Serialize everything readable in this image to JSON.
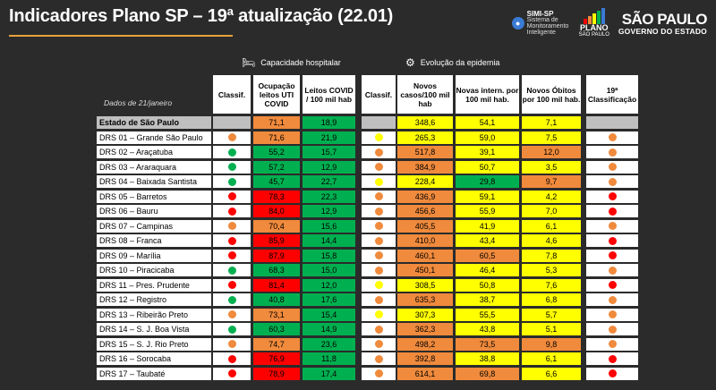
{
  "title": "Indicadores Plano SP – 19ª atualização (22.01)",
  "logos": {
    "simi_title": "SIMI-SP",
    "simi_sub": "Sistema de Monitoramento Inteligente",
    "plano_title": "PLANO",
    "plano_sub": "SÃO PAULO",
    "sp_title": "SÃO PAULO",
    "sp_sub": "GOVERNO DO ESTADO"
  },
  "sections": {
    "capacidade": "Capacidade hospitalar",
    "evolucao": "Evolução da epidemia"
  },
  "date_label": "Dados de 21/janeiro",
  "headers": {
    "classif1": "Classif.",
    "ocupacao": "Ocupação leitos UTI COVID",
    "leitos": "Leitos COVID / 100 mil hab",
    "classif2": "Classif.",
    "casos": "Novos casos/100 mil hab",
    "intern": "Novas intern. por 100 mil hab.",
    "obitos": "Novos Óbitos por 100 mil hab.",
    "classif19": "19ª Classificação"
  },
  "colors": {
    "red": "#ff0000",
    "orange": "#f08a3c",
    "yellow": "#ffff00",
    "green": "#00b050",
    "gray": "#bfbfbf"
  },
  "rows": [
    {
      "name": "Estado de São Paulo",
      "c1": "",
      "ocup": "71,1",
      "ocup_c": "orange",
      "leit": "18,9",
      "leit_c": "green",
      "c2": "",
      "casos": "348,6",
      "casos_c": "yellow",
      "int": "54,1",
      "int_c": "yellow",
      "obi": "7,1",
      "obi_c": "yellow",
      "c19": "",
      "state": true
    },
    {
      "name": "DRS 01 – Grande São Paulo",
      "c1": "orange",
      "ocup": "71,6",
      "ocup_c": "orange",
      "leit": "21,9",
      "leit_c": "green",
      "c2": "yellow",
      "casos": "265,3",
      "casos_c": "yellow",
      "int": "59,0",
      "int_c": "yellow",
      "obi": "7,5",
      "obi_c": "yellow",
      "c19": "orange"
    },
    {
      "name": "DRS 02 – Araçatuba",
      "c1": "green",
      "ocup": "55,2",
      "ocup_c": "green",
      "leit": "15,7",
      "leit_c": "green",
      "c2": "orange",
      "casos": "517,8",
      "casos_c": "orange",
      "int": "39,1",
      "int_c": "yellow",
      "obi": "12,0",
      "obi_c": "orange",
      "c19": "orange"
    },
    {
      "name": "DRS 03 – Araraquara",
      "c1": "green",
      "ocup": "57,2",
      "ocup_c": "green",
      "leit": "12,9",
      "leit_c": "green",
      "c2": "orange",
      "casos": "384,9",
      "casos_c": "orange",
      "int": "50,7",
      "int_c": "yellow",
      "obi": "3,5",
      "obi_c": "yellow",
      "c19": "orange"
    },
    {
      "name": "DRS 04 – Baixada Santista",
      "c1": "green",
      "ocup": "45,7",
      "ocup_c": "green",
      "leit": "22,7",
      "leit_c": "green",
      "c2": "yellow",
      "casos": "228,4",
      "casos_c": "yellow",
      "int": "29,8",
      "int_c": "green",
      "obi": "9,7",
      "obi_c": "orange",
      "c19": "orange"
    },
    {
      "name": "DRS 05 – Barretos",
      "c1": "red",
      "ocup": "78,3",
      "ocup_c": "red",
      "leit": "22,3",
      "leit_c": "green",
      "c2": "orange",
      "casos": "436,9",
      "casos_c": "orange",
      "int": "59,1",
      "int_c": "yellow",
      "obi": "4,2",
      "obi_c": "yellow",
      "c19": "red"
    },
    {
      "name": "DRS 06 – Bauru",
      "c1": "red",
      "ocup": "84,0",
      "ocup_c": "red",
      "leit": "12,9",
      "leit_c": "green",
      "c2": "orange",
      "casos": "456,6",
      "casos_c": "orange",
      "int": "55,9",
      "int_c": "yellow",
      "obi": "7,0",
      "obi_c": "yellow",
      "c19": "red"
    },
    {
      "name": "DRS 07 – Campinas",
      "c1": "orange",
      "ocup": "70,4",
      "ocup_c": "orange",
      "leit": "15,6",
      "leit_c": "green",
      "c2": "orange",
      "casos": "405,5",
      "casos_c": "orange",
      "int": "41,9",
      "int_c": "yellow",
      "obi": "6,1",
      "obi_c": "yellow",
      "c19": "orange"
    },
    {
      "name": "DRS 08 – Franca",
      "c1": "red",
      "ocup": "85,9",
      "ocup_c": "red",
      "leit": "14,4",
      "leit_c": "green",
      "c2": "orange",
      "casos": "410,0",
      "casos_c": "orange",
      "int": "43,4",
      "int_c": "yellow",
      "obi": "4,6",
      "obi_c": "yellow",
      "c19": "red"
    },
    {
      "name": "DRS 09 – Marília",
      "c1": "red",
      "ocup": "87,9",
      "ocup_c": "red",
      "leit": "15,8",
      "leit_c": "green",
      "c2": "orange",
      "casos": "460,1",
      "casos_c": "orange",
      "int": "60,5",
      "int_c": "orange",
      "obi": "7,8",
      "obi_c": "yellow",
      "c19": "red"
    },
    {
      "name": "DRS 10 – Piracicaba",
      "c1": "green",
      "ocup": "68,3",
      "ocup_c": "green",
      "leit": "15,0",
      "leit_c": "green",
      "c2": "orange",
      "casos": "450,1",
      "casos_c": "orange",
      "int": "46,4",
      "int_c": "yellow",
      "obi": "5,3",
      "obi_c": "yellow",
      "c19": "orange"
    },
    {
      "name": "DRS 11 – Pres. Prudente",
      "c1": "red",
      "ocup": "81,4",
      "ocup_c": "red",
      "leit": "12,0",
      "leit_c": "green",
      "c2": "yellow",
      "casos": "308,5",
      "casos_c": "yellow",
      "int": "50,8",
      "int_c": "yellow",
      "obi": "7,6",
      "obi_c": "yellow",
      "c19": "red"
    },
    {
      "name": "DRS 12 – Registro",
      "c1": "green",
      "ocup": "40,8",
      "ocup_c": "green",
      "leit": "17,6",
      "leit_c": "green",
      "c2": "orange",
      "casos": "635,3",
      "casos_c": "orange",
      "int": "38,7",
      "int_c": "yellow",
      "obi": "6,8",
      "obi_c": "yellow",
      "c19": "orange"
    },
    {
      "name": "DRS 13 – Ribeirão Preto",
      "c1": "orange",
      "ocup": "73,1",
      "ocup_c": "orange",
      "leit": "15,4",
      "leit_c": "green",
      "c2": "yellow",
      "casos": "307,3",
      "casos_c": "yellow",
      "int": "55,5",
      "int_c": "yellow",
      "obi": "5,7",
      "obi_c": "yellow",
      "c19": "orange"
    },
    {
      "name": "DRS 14 – S. J. Boa Vista",
      "c1": "green",
      "ocup": "60,3",
      "ocup_c": "green",
      "leit": "14,9",
      "leit_c": "green",
      "c2": "orange",
      "casos": "362,3",
      "casos_c": "orange",
      "int": "43,8",
      "int_c": "yellow",
      "obi": "5,1",
      "obi_c": "yellow",
      "c19": "orange"
    },
    {
      "name": "DRS 15 – S. J. Rio Preto",
      "c1": "orange",
      "ocup": "74,7",
      "ocup_c": "orange",
      "leit": "23,6",
      "leit_c": "green",
      "c2": "orange",
      "casos": "498,2",
      "casos_c": "orange",
      "int": "73,5",
      "int_c": "orange",
      "obi": "9,8",
      "obi_c": "orange",
      "c19": "orange"
    },
    {
      "name": "DRS 16 – Sorocaba",
      "c1": "red",
      "ocup": "76,9",
      "ocup_c": "red",
      "leit": "11,8",
      "leit_c": "green",
      "c2": "orange",
      "casos": "392,8",
      "casos_c": "orange",
      "int": "38,8",
      "int_c": "yellow",
      "obi": "6,1",
      "obi_c": "yellow",
      "c19": "red"
    },
    {
      "name": "DRS 17 – Taubaté",
      "c1": "red",
      "ocup": "78,9",
      "ocup_c": "red",
      "leit": "17,4",
      "leit_c": "green",
      "c2": "orange",
      "casos": "614,1",
      "casos_c": "orange",
      "int": "69,8",
      "int_c": "orange",
      "obi": "6,6",
      "obi_c": "yellow",
      "c19": "red"
    }
  ]
}
